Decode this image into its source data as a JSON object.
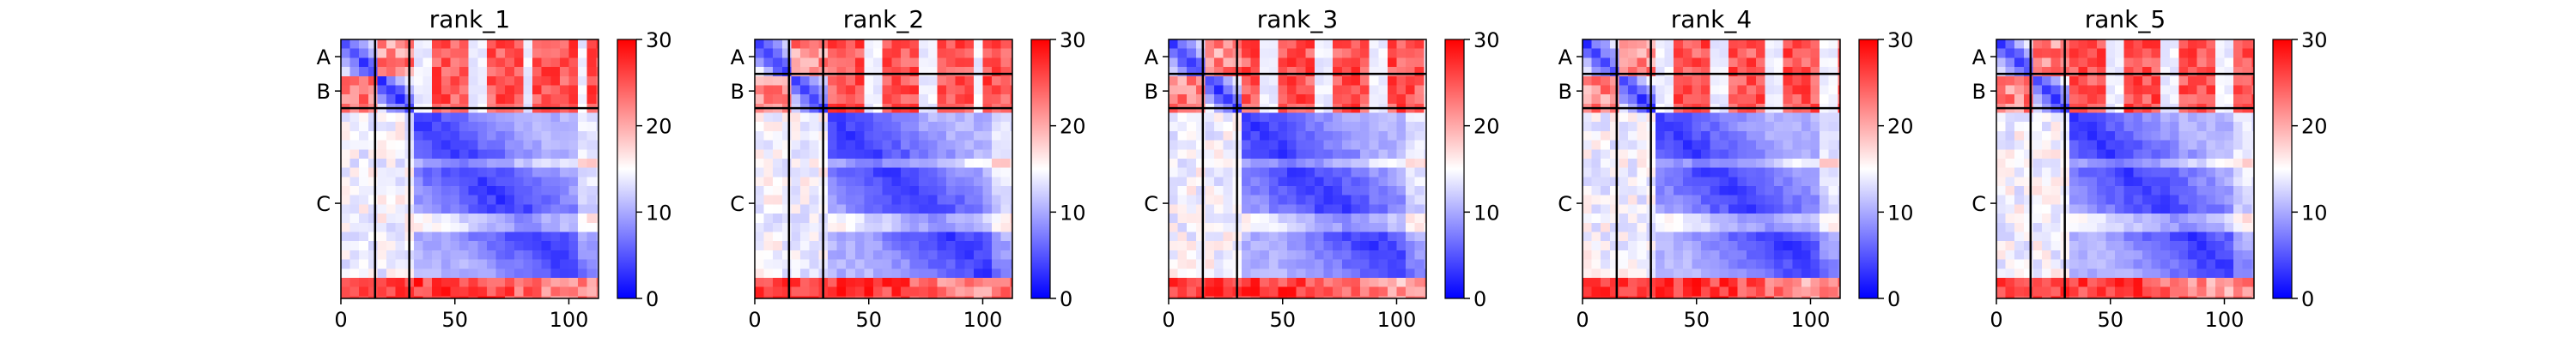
{
  "chart_data": {
    "type": "heatmap",
    "title": "",
    "colorbar": {
      "ticks": [
        0,
        10,
        20,
        30
      ],
      "range": [
        0,
        30
      ],
      "colormap": [
        "#0000ff",
        "#ffffff",
        "#ff0000"
      ]
    },
    "xaxis": {
      "ticks": [
        0,
        50,
        100
      ],
      "range": [
        0,
        113
      ]
    },
    "chains": [
      {
        "label": "A",
        "start": 0,
        "end": 15
      },
      {
        "label": "B",
        "start": 15,
        "end": 30
      },
      {
        "label": "C",
        "start": 30,
        "end": 113
      }
    ],
    "panels": [
      {
        "title": "rank_1",
        "chain_order": [
          "B",
          "A",
          "C"
        ]
      },
      {
        "title": "rank_2",
        "chain_order": [
          "A",
          "B",
          "C"
        ]
      },
      {
        "title": "rank_3",
        "chain_order": [
          "A",
          "B",
          "C"
        ]
      },
      {
        "title": "rank_4",
        "chain_order": [
          "A",
          "B",
          "C"
        ]
      },
      {
        "title": "rank_5",
        "chain_order": [
          "A",
          "B",
          "C"
        ]
      }
    ]
  }
}
